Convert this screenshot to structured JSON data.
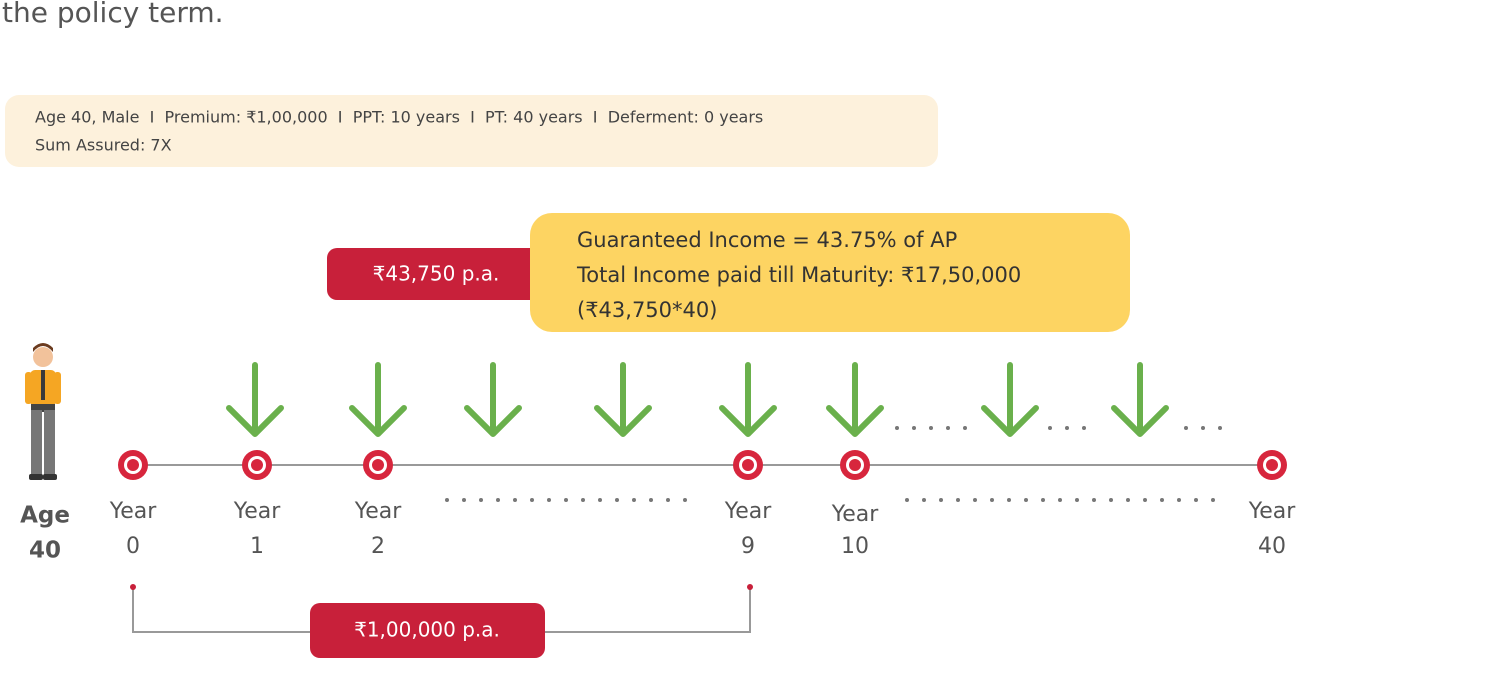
{
  "intro_text": "the policy term.",
  "assumptions": {
    "line1": "Age 40, Male  I  Premium: ₹1,00,000  I  PPT: 10 years  I  PT: 40 years  I  Deferment: 0 years",
    "line2": "Sum Assured: 7X"
  },
  "income_label": "₹43,750 p.a.",
  "income_note": {
    "lines": [
      "Guaranteed Income = 43.75% of AP",
      "Total Income paid till Maturity: ₹17,50,000",
      "(₹43,750*40)"
    ]
  },
  "person_label": {
    "line1": "Age",
    "line2": "40"
  },
  "timeline": {
    "milestones": [
      {
        "label": "Year",
        "number": 0
      },
      {
        "label": "Year",
        "number": 1
      },
      {
        "label": "Year",
        "number": 2
      },
      {
        "label": "Year",
        "number": 9
      },
      {
        "label": "Year",
        "number": 10
      },
      {
        "label": "Year",
        "number": 40
      }
    ]
  },
  "premium_label": "₹1,00,000 p.a."
}
